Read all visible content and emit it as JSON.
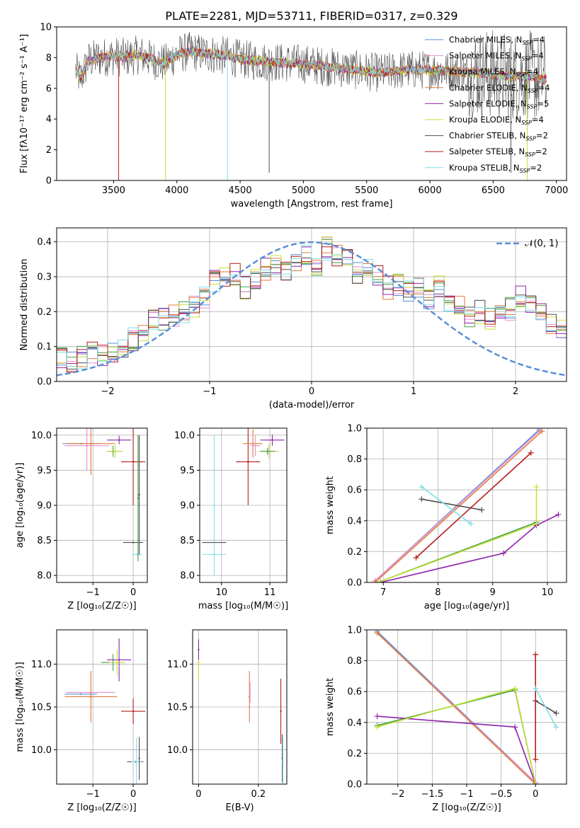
{
  "colors": {
    "chab_miles": "#5b8fd6",
    "salp_miles": "#e58fd0",
    "krou_miles": "#43a047",
    "chab_elodie": "#e07b39",
    "salp_elodie": "#8e24aa",
    "krou_elodie": "#c6e03a",
    "chab_stelib": "#4d4d4d",
    "salp_stelib": "#b71c1c",
    "krou_stelib": "#80deea",
    "normal": "#5b8fd6"
  },
  "chart_data": [
    {
      "id": "spectrum",
      "type": "line",
      "title": "PLATE=2281, MJD=53711, FIBERID=0317, z=0.329",
      "xlabel": "wavelength [Angstrom, rest frame]",
      "ylabel": "Flux [fλ10⁻¹⁷ erg cm⁻² s⁻¹ A⁻¹]",
      "xlim": [
        3050,
        7080
      ],
      "ylim": [
        0,
        10
      ],
      "xticks": [
        3500,
        4000,
        4500,
        5000,
        5500,
        6000,
        6500,
        7000
      ],
      "yticks": [
        0,
        2,
        4,
        6,
        8,
        10
      ],
      "grid": false,
      "legend_position": "top-right",
      "legend": [
        {
          "key": "chab_miles",
          "label": "Chabrier MILES, N",
          "sub": "SSP",
          "tail": "=4"
        },
        {
          "key": "salp_miles",
          "label": "Salpeter MILES, N",
          "sub": "SSP",
          "tail": "=4"
        },
        {
          "key": "krou_miles",
          "label": "Kroupa MILES, N",
          "sub": "SSP",
          "tail": "=4"
        },
        {
          "key": "chab_elodie",
          "label": "Chabrier ELODIE, N",
          "sub": "SSP",
          "tail": "=4"
        },
        {
          "key": "salp_elodie",
          "label": "Salpeter ELODIE, N",
          "sub": "SSP",
          "tail": "=5"
        },
        {
          "key": "krou_elodie",
          "label": "Kroupa ELODIE, N",
          "sub": "SSP",
          "tail": "=4"
        },
        {
          "key": "chab_stelib",
          "label": "Chabrier STELIB, N",
          "sub": "SSP",
          "tail": "=2"
        },
        {
          "key": "salp_stelib",
          "label": "Salpeter STELIB, N",
          "sub": "SSP",
          "tail": "=2"
        },
        {
          "key": "krou_stelib",
          "label": "Kroupa STELIB, N",
          "sub": "SSP",
          "tail": "=2"
        }
      ],
      "continuum": {
        "x": [
          3200,
          3240,
          3300,
          3400,
          3500,
          3600,
          3700,
          3800,
          3900,
          4000,
          4100,
          4200,
          4300,
          4400,
          4500,
          4600,
          4800,
          5000,
          5200,
          5400,
          5600,
          5800,
          6000,
          6200,
          6400,
          6600,
          6800,
          6900
        ],
        "y": [
          7.2,
          6.6,
          7.8,
          8.0,
          8.1,
          8.0,
          8.2,
          7.9,
          7.6,
          8.2,
          8.4,
          8.3,
          8.2,
          8.1,
          7.9,
          7.8,
          7.7,
          7.6,
          7.4,
          7.2,
          7.0,
          7.2,
          7.2,
          7.1,
          7.0,
          6.8,
          6.8,
          6.6
        ]
      },
      "drops": [
        {
          "key": "salp_stelib",
          "x": 3540,
          "y": 0
        },
        {
          "key": "krou_elodie",
          "x": 3910,
          "y": 0
        },
        {
          "key": "krou_stelib",
          "x": 4400,
          "y": 0
        },
        {
          "key": "chab_stelib",
          "x": 4730,
          "y": 0.5
        },
        {
          "key": "chab_stelib",
          "x": 6640,
          "y": 0.5
        },
        {
          "key": "krou_elodie",
          "x": 6770,
          "y": 0
        }
      ]
    },
    {
      "id": "residuals",
      "type": "histogram",
      "xlabel": "(data-model)/error",
      "ylabel": "Normed distribution",
      "xlim": [
        -2.5,
        2.5
      ],
      "ylim": [
        0,
        0.44
      ],
      "xticks": [
        -2,
        -1,
        0,
        1,
        2
      ],
      "yticks": [
        0.0,
        0.1,
        0.2,
        0.3,
        0.4
      ],
      "grid": true,
      "legend_position": "top-right",
      "normal_label": "𝒩(0, 1)",
      "bin_width": 0.1,
      "bin_start": -2.5,
      "base": [
        0.07,
        0.06,
        0.07,
        0.08,
        0.07,
        0.08,
        0.09,
        0.12,
        0.15,
        0.18,
        0.18,
        0.19,
        0.2,
        0.21,
        0.24,
        0.29,
        0.3,
        0.31,
        0.27,
        0.3,
        0.32,
        0.34,
        0.31,
        0.35,
        0.37,
        0.33,
        0.38,
        0.36,
        0.35,
        0.31,
        0.33,
        0.3,
        0.27,
        0.28,
        0.26,
        0.27,
        0.24,
        0.27,
        0.23,
        0.21,
        0.19,
        0.2,
        0.18,
        0.2,
        0.21,
        0.24,
        0.23,
        0.21,
        0.17,
        0.15,
        0.12,
        0.11,
        0.1,
        0.1,
        0.09,
        0.08,
        0.07,
        0.06,
        0.06,
        0.05
      ]
    },
    {
      "id": "age_vs_Z",
      "type": "errorbar",
      "xlabel": "Z [log₁₀(Z/Z☉)]",
      "ylabel": "age  [log₁₀(age/yr)]",
      "xlim": [
        -1.9,
        0.35
      ],
      "ylim": [
        7.9,
        10.1
      ],
      "xticks": [
        -1,
        0
      ],
      "yticks": [
        8.0,
        8.5,
        9.0,
        9.5,
        10.0
      ],
      "grid": true,
      "points": [
        {
          "key": "chab_miles",
          "x": -1.3,
          "xerr": 0.45,
          "y": 9.88,
          "yerr": 0.0
        },
        {
          "key": "salp_miles",
          "x": -1.15,
          "xerr": 0.55,
          "y": 9.85,
          "yerr": 0.35
        },
        {
          "key": "krou_miles",
          "x": -0.5,
          "xerr": 0.15,
          "y": 9.77,
          "yerr": 0.08
        },
        {
          "key": "chab_elodie",
          "x": -1.05,
          "xerr": 0.6,
          "y": 9.88,
          "yerr": 0.45
        },
        {
          "key": "salp_elodie",
          "x": -0.35,
          "xerr": 0.3,
          "y": 9.93,
          "yerr": 0.06
        },
        {
          "key": "krou_elodie",
          "x": -0.45,
          "xerr": 0.2,
          "y": 9.77,
          "yerr": 0.1
        },
        {
          "key": "chab_stelib",
          "x": 0.0,
          "xerr": 0.25,
          "y": 8.47,
          "yerr": 0.0
        },
        {
          "key": "salp_stelib",
          "x": 0.0,
          "xerr": 0.3,
          "y": 9.62,
          "yerr": 0.62
        },
        {
          "key": "krou_stelib",
          "x": 0.1,
          "xerr": 0.12,
          "y": 8.3,
          "yerr": 0.0
        },
        {
          "key": "krou_miles",
          "x": 0.12,
          "xerr": 0.0,
          "y": 9.1,
          "yerr": 0.9
        },
        {
          "key": "chab_stelib",
          "x": 0.15,
          "xerr": 0.0,
          "y": 9.15,
          "yerr": 0.85
        }
      ]
    },
    {
      "id": "age_vs_mass",
      "type": "errorbar",
      "xlabel": "mass [log₁₀(M/M☉)]",
      "ylabel": "",
      "xlim": [
        9.55,
        11.35
      ],
      "ylim": [
        7.9,
        10.1
      ],
      "xticks": [
        10,
        11
      ],
      "yticks": [
        8.0,
        8.5,
        9.0,
        9.5,
        10.0
      ],
      "grid": true,
      "points": [
        {
          "key": "chab_stelib",
          "x": 9.85,
          "xerr": 0.25,
          "y": 8.47,
          "yerr": 0.0
        },
        {
          "key": "krou_stelib",
          "x": 9.85,
          "xerr": 0.25,
          "y": 8.3,
          "yerr": 0.0
        },
        {
          "key": "krou_stelib",
          "x": 9.85,
          "xerr": 0.0,
          "y": 9.0,
          "yerr": 1.0
        },
        {
          "key": "salp_stelib",
          "x": 10.55,
          "xerr": 0.25,
          "y": 9.62,
          "yerr": 0.62
        },
        {
          "key": "chab_elodie",
          "x": 10.65,
          "xerr": 0.2,
          "y": 9.88,
          "yerr": 0.2
        },
        {
          "key": "salp_miles",
          "x": 10.7,
          "xerr": 0.1,
          "y": 9.85,
          "yerr": 0.15
        },
        {
          "key": "salp_elodie",
          "x": 11.05,
          "xerr": 0.25,
          "y": 9.93,
          "yerr": 0.08
        },
        {
          "key": "krou_elodie",
          "x": 10.98,
          "xerr": 0.2,
          "y": 9.77,
          "yerr": 0.1
        },
        {
          "key": "krou_miles",
          "x": 10.95,
          "xerr": 0.15,
          "y": 9.77,
          "yerr": 0.05
        }
      ]
    },
    {
      "id": "weight_vs_age",
      "type": "line",
      "xlabel": "age  [log₁₀(age/yr)]",
      "ylabel": "mass weight",
      "xlim": [
        6.7,
        10.35
      ],
      "ylim": [
        0,
        1.0
      ],
      "xticks": [
        7,
        8,
        9,
        10
      ],
      "yticks": [
        0.0,
        0.2,
        0.4,
        0.6,
        0.8,
        1.0
      ],
      "grid": true,
      "series": [
        {
          "key": "chab_miles",
          "x": [
            6.85,
            9.85
          ],
          "y": [
            0.01,
            0.99
          ]
        },
        {
          "key": "salp_miles",
          "x": [
            6.85,
            9.85
          ],
          "y": [
            0.01,
            0.98
          ]
        },
        {
          "key": "krou_miles",
          "x": [
            6.9,
            9.8
          ],
          "y": [
            0.0,
            0.39
          ]
        },
        {
          "key": "chab_elodie",
          "x": [
            6.85,
            9.9
          ],
          "y": [
            0.0,
            0.98
          ]
        },
        {
          "key": "salp_elodie",
          "x": [
            6.95,
            9.2,
            9.8,
            10.2
          ],
          "y": [
            0.0,
            0.19,
            0.37,
            0.44
          ]
        },
        {
          "key": "krou_elodie",
          "x": [
            6.9,
            9.8,
            9.8
          ],
          "y": [
            0.0,
            0.38,
            0.62
          ]
        },
        {
          "key": "chab_stelib",
          "x": [
            7.7,
            8.8
          ],
          "y": [
            0.54,
            0.47
          ]
        },
        {
          "key": "salp_stelib",
          "x": [
            7.6,
            9.7
          ],
          "y": [
            0.16,
            0.84
          ]
        },
        {
          "key": "krou_stelib",
          "x": [
            7.7,
            8.6
          ],
          "y": [
            0.62,
            0.38
          ]
        }
      ]
    },
    {
      "id": "mass_vs_Z",
      "type": "errorbar",
      "xlabel": "Z [log₁₀(Z/Z☉)]",
      "ylabel": "mass [log₁₀(M/M☉)]",
      "xlim": [
        -1.9,
        0.35
      ],
      "ylim": [
        9.6,
        11.4
      ],
      "xticks": [
        -1,
        0
      ],
      "yticks": [
        10.0,
        10.5,
        11.0
      ],
      "grid": true,
      "points": [
        {
          "key": "chab_miles",
          "x": -1.3,
          "xerr": 0.4,
          "y": 10.65,
          "yerr": 0.0
        },
        {
          "key": "salp_miles",
          "x": -1.05,
          "xerr": 0.6,
          "y": 10.67,
          "yerr": 0.07
        },
        {
          "key": "krou_miles",
          "x": -0.5,
          "xerr": 0.3,
          "y": 11.02,
          "yerr": 0.1
        },
        {
          "key": "chab_elodie",
          "x": -1.05,
          "xerr": 0.65,
          "y": 10.62,
          "yerr": 0.3
        },
        {
          "key": "salp_elodie",
          "x": -0.35,
          "xerr": 0.3,
          "y": 11.05,
          "yerr": 0.25
        },
        {
          "key": "krou_elodie",
          "x": -0.4,
          "xerr": 0.2,
          "y": 11.02,
          "yerr": 0.15
        },
        {
          "key": "chab_stelib",
          "x": 0.05,
          "xerr": 0.2,
          "y": 9.86,
          "yerr": 0.0
        },
        {
          "key": "salp_stelib",
          "x": 0.0,
          "xerr": 0.3,
          "y": 10.45,
          "yerr": 0.15
        },
        {
          "key": "krou_stelib",
          "x": 0.08,
          "xerr": 0.12,
          "y": 9.86,
          "yerr": 0.28
        },
        {
          "key": "chab_stelib",
          "x": 0.15,
          "xerr": 0.0,
          "y": 9.9,
          "yerr": 0.25
        }
      ]
    },
    {
      "id": "mass_vs_ebv",
      "type": "errorbar",
      "xlabel": "E(B-V)",
      "ylabel": "",
      "xlim": [
        -0.02,
        0.295
      ],
      "ylim": [
        9.6,
        11.4
      ],
      "xticks": [
        0.0,
        0.2
      ],
      "yticks": [
        10.0,
        10.5,
        11.0
      ],
      "grid": true,
      "points": [
        {
          "key": "krou_elodie",
          "x": 0.0,
          "xerr": 0.0,
          "y": 11.02,
          "yerr": 0.2
        },
        {
          "key": "salp_elodie",
          "x": 0.0,
          "xerr": 0.0,
          "y": 11.17,
          "yerr": 0.12
        },
        {
          "key": "chab_elodie",
          "x": 0.17,
          "xerr": 0.0,
          "y": 10.62,
          "yerr": 0.3
        },
        {
          "key": "salp_miles",
          "x": 0.172,
          "xerr": 0.0,
          "y": 10.67,
          "yerr": 0.12
        },
        {
          "key": "salp_stelib",
          "x": 0.275,
          "xerr": 0.0,
          "y": 10.45,
          "yerr": 0.38
        },
        {
          "key": "chab_stelib",
          "x": 0.28,
          "xerr": 0.0,
          "y": 9.9,
          "yerr": 0.28
        },
        {
          "key": "krou_stelib",
          "x": 0.282,
          "xerr": 0.0,
          "y": 9.86,
          "yerr": 0.28
        }
      ]
    },
    {
      "id": "weight_vs_Z",
      "type": "line",
      "xlabel": "Z [log₁₀(Z/Z☉)]",
      "ylabel": "mass weight",
      "xlim": [
        -2.45,
        0.45
      ],
      "ylim": [
        0,
        1.0
      ],
      "xticks": [
        -2.0,
        -1.5,
        -1.0,
        -0.5,
        0.0
      ],
      "yticks": [
        0.0,
        0.2,
        0.4,
        0.6,
        0.8,
        1.0
      ],
      "grid": true,
      "series": [
        {
          "key": "chab_miles",
          "x": [
            -2.3,
            0.0
          ],
          "y": [
            0.99,
            0.01
          ]
        },
        {
          "key": "salp_miles",
          "x": [
            -2.3,
            0.0
          ],
          "y": [
            0.98,
            0.01
          ]
        },
        {
          "key": "krou_miles",
          "x": [
            -2.3,
            -0.3,
            0.0
          ],
          "y": [
            0.38,
            0.61,
            0.0
          ]
        },
        {
          "key": "chab_elodie",
          "x": [
            -2.3,
            0.0
          ],
          "y": [
            0.98,
            0.0
          ]
        },
        {
          "key": "salp_elodie",
          "x": [
            -2.3,
            -0.3,
            0.0
          ],
          "y": [
            0.44,
            0.37,
            0.0
          ]
        },
        {
          "key": "krou_elodie",
          "x": [
            -2.3,
            -0.3,
            0.0
          ],
          "y": [
            0.37,
            0.62,
            0.0
          ]
        },
        {
          "key": "chab_stelib",
          "x": [
            0.0,
            0.3
          ],
          "y": [
            0.54,
            0.46
          ]
        },
        {
          "key": "salp_stelib",
          "x": [
            0.0,
            0.0
          ],
          "y": [
            0.16,
            0.84
          ]
        },
        {
          "key": "krou_stelib",
          "x": [
            0.0,
            0.3
          ],
          "y": [
            0.62,
            0.37
          ]
        }
      ]
    }
  ]
}
